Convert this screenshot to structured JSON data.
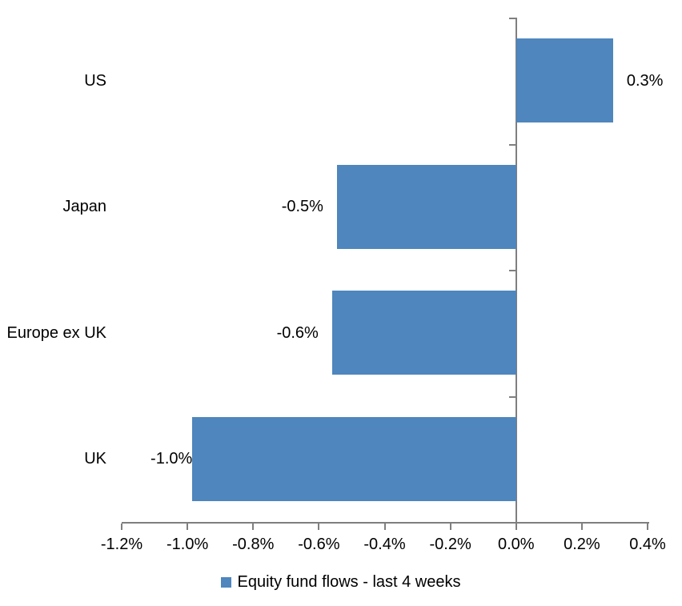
{
  "chart_data": {
    "type": "bar",
    "orientation": "horizontal",
    "title": "",
    "categories": [
      "US",
      "Japan",
      "Europe ex UK",
      "UK"
    ],
    "values": [
      0.3,
      -0.5,
      -0.6,
      -1.0
    ],
    "value_labels": [
      "0.3%",
      "-0.5%",
      "-0.6%",
      "-1.0%"
    ],
    "plotted_values": [
      0.295,
      -0.545,
      -0.56,
      -0.985
    ],
    "series": [
      {
        "name": "Equity fund flows - last 4 weeks",
        "values": [
          0.3,
          -0.5,
          -0.6,
          -1.0
        ]
      }
    ],
    "legend": {
      "label": "Equity fund flows - last 4 weeks",
      "position": "bottom",
      "swatch": "square"
    },
    "xlabel": "",
    "ylabel": "",
    "xlim": [
      -1.2,
      0.4
    ],
    "x_ticks": [
      -1.2,
      -1.0,
      -0.8,
      -0.6,
      -0.4,
      -0.2,
      0.0,
      0.2,
      0.4
    ],
    "x_tick_labels": [
      "-1.2%",
      "-1.0%",
      "-0.8%",
      "-0.6%",
      "-0.4%",
      "-0.2%",
      "0.0%",
      "0.2%",
      "0.4%"
    ],
    "grid": false,
    "colors": {
      "bar": "#4E86BD",
      "axis": "#7F7F7F",
      "text": "#000000",
      "background": "#FFFFFF"
    }
  }
}
